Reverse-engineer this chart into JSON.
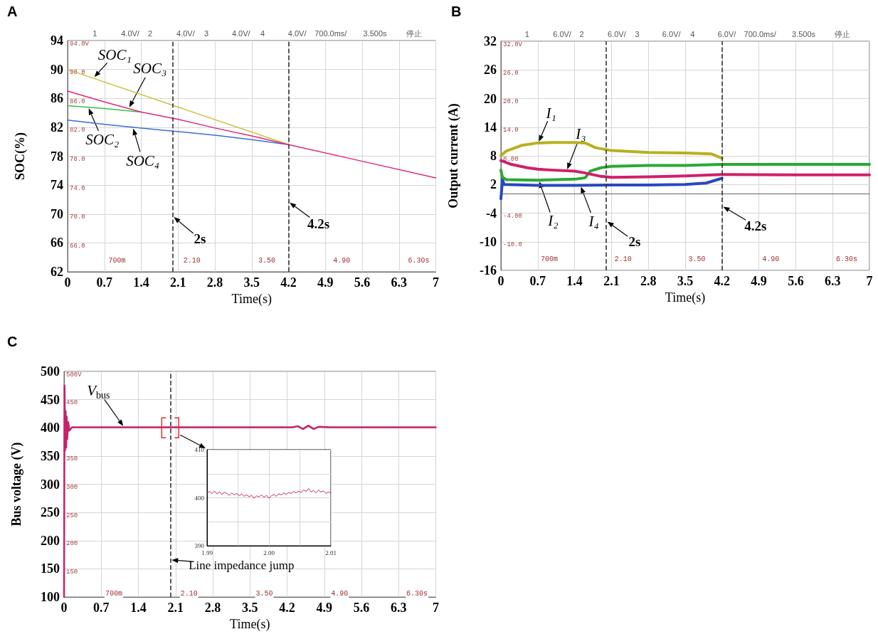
{
  "chart_data": [
    {
      "type": "line",
      "title": "A",
      "xlabel": "Time(s)",
      "ylabel": "SOC(%)",
      "xlim": [
        0,
        7
      ],
      "ylim": [
        62,
        94
      ],
      "xticks": [
        0,
        0.7,
        1.4,
        2.1,
        2.8,
        3.5,
        4.2,
        4.9,
        5.6,
        6.3,
        7
      ],
      "yticks": [
        62,
        66,
        70,
        74,
        78,
        82,
        86,
        90,
        94
      ],
      "grid": true,
      "y2lim": [
        62,
        94
      ],
      "y2ticks": [
        {
          "value": 94,
          "label": "94.0V"
        },
        {
          "value": 90,
          "label": "90.0"
        },
        {
          "value": 86,
          "label": "86.0"
        },
        {
          "value": 82,
          "label": "82.0"
        },
        {
          "value": 78,
          "label": "78.0"
        },
        {
          "value": 74,
          "label": "74.0"
        },
        {
          "value": 70,
          "label": "70.0"
        },
        {
          "value": 66,
          "label": "66.0"
        }
      ],
      "ref_lines": [
        {
          "axis": "x",
          "value": 2,
          "line_style": "dashed",
          "color": "#333333"
        },
        {
          "axis": "x",
          "value": 4.2,
          "line_style": "dashed",
          "color": "#333333"
        }
      ],
      "annotations": [
        "1",
        "4.0V/",
        "2",
        "4.0V/",
        "3",
        "4.0V/",
        "4",
        "4.0V/",
        "700.0ms/",
        "3.500s",
        "停止",
        "700m",
        "2.10",
        "3.50",
        "4.90",
        "6.30s",
        {
          "text": "SOC₁",
          "x": 0.49,
          "y": 88.8
        },
        {
          "text": "SOC₃",
          "x": 1.16,
          "y": 84.6
        },
        {
          "text": "SOC₂",
          "x": 0.39,
          "y": 84.8
        },
        {
          "text": "SOC₄",
          "x": 1.24,
          "y": 82
        },
        {
          "text": "2s",
          "x": 2,
          "y": 69.7
        },
        {
          "text": "4.2s",
          "x": 4.2,
          "y": 71.7
        }
      ],
      "series": [
        {
          "color": "#3a6fd8",
          "x": [
            0,
            0.7,
            1.4,
            2.1,
            2.8,
            3.5,
            4.2
          ],
          "values": [
            83,
            82.4,
            81.9,
            81.4,
            80.9,
            80.3,
            79.6
          ]
        },
        {
          "color": "#33c24a",
          "x": [
            0,
            0.7,
            1.4
          ],
          "values": [
            85,
            84.6,
            84.1
          ]
        },
        {
          "color": "#c8c43c",
          "x": [
            0,
            2.1,
            4.2
          ],
          "values": [
            90,
            84.8,
            79.6
          ]
        },
        {
          "color": "#e0287a",
          "x": [
            0,
            0.7,
            1.4,
            2.1,
            2.8,
            3.5,
            4.2,
            5.6,
            7
          ],
          "values": [
            87,
            85.5,
            84.1,
            83.1,
            81.9,
            80.8,
            79.6,
            77.3,
            75
          ]
        }
      ]
    },
    {
      "type": "line",
      "title": "B",
      "xlabel": "Time(s)",
      "ylabel": "Output current (A)",
      "xlim": [
        0,
        7
      ],
      "ylim": [
        -16,
        32
      ],
      "xticks": [
        0,
        0.7,
        1.4,
        2.1,
        2.8,
        3.5,
        4.2,
        4.9,
        5.6,
        6.3,
        7
      ],
      "yticks": [
        -16,
        -10,
        -4,
        2,
        8,
        14,
        20,
        26,
        32
      ],
      "grid": true,
      "y2lim": [
        -16,
        32
      ],
      "y2ticks": [
        {
          "value": 32,
          "label": "32.0V"
        },
        {
          "value": 26,
          "label": "26.0"
        },
        {
          "value": 20,
          "label": "20.0"
        },
        {
          "value": 14,
          "label": "14.0"
        },
        {
          "value": 8,
          "label": "8.00"
        },
        {
          "value": -4,
          "label": "-4.00"
        },
        {
          "value": -10,
          "label": "-10.0"
        }
      ],
      "ref_lines": [
        {
          "axis": "x",
          "value": 2,
          "line_style": "dashed",
          "color": "#333333"
        },
        {
          "axis": "x",
          "value": 4.2,
          "line_style": "dashed",
          "color": "#333333"
        }
      ],
      "annotations": [
        "1",
        "6.0V/",
        "2",
        "6.0V/",
        "3",
        "6.0V/",
        "4",
        "6.0V/",
        "700.0ms/",
        "3.500s",
        "停止",
        "700m",
        "2.10",
        "3.50",
        "4.90",
        "6.30s",
        {
          "text": "I₁",
          "x": 0.71,
          "y": 10.7
        },
        {
          "text": "I₃",
          "x": 1.25,
          "y": 4.9
        },
        {
          "text": "I₂",
          "x": 0.72,
          "y": 2.9
        },
        {
          "text": "I₄",
          "x": 1.51,
          "y": 1.8
        },
        {
          "text": "2s",
          "x": 2,
          "y": -5.6
        },
        {
          "text": "4.2s",
          "x": 4.2,
          "y": -2.5
        }
      ],
      "series": [
        {
          "color": "#2848c0",
          "x": [
            0,
            0.03,
            0.06,
            0.7,
            1.4,
            2.1,
            2.8,
            3.5,
            3.9,
            4.2
          ],
          "values": [
            -1,
            3,
            2,
            1.8,
            1.8,
            1.9,
            1.9,
            2,
            2.3,
            3.3
          ]
        },
        {
          "color": "#b8b020",
          "x": [
            0,
            0.1,
            0.4,
            0.7,
            1.0,
            1.4,
            1.6,
            1.8,
            2.1,
            2.8,
            3.5,
            4.0,
            4.2
          ],
          "values": [
            8,
            9,
            10.2,
            10.7,
            10.8,
            10.8,
            10.7,
            9.7,
            9.1,
            8.7,
            8.6,
            8.4,
            7.5
          ]
        },
        {
          "color": "#2aa834",
          "x": [
            0,
            0.03,
            0.1,
            0.7,
            1.4,
            1.6,
            1.7,
            1.9,
            2.1,
            2.8,
            3.5,
            4.2,
            5.6,
            7
          ],
          "values": [
            5,
            3.5,
            3,
            2.9,
            3.1,
            3.4,
            4.8,
            5.5,
            5.8,
            6,
            6,
            6.2,
            6.2,
            6.2
          ]
        },
        {
          "color": "#d0206a",
          "x": [
            0,
            0.2,
            0.5,
            0.7,
            1.0,
            1.4,
            1.6,
            1.9,
            2.1,
            2.8,
            3.5,
            4.2,
            5.6,
            7
          ],
          "values": [
            7,
            6.2,
            5.5,
            5.2,
            5,
            4.8,
            4.4,
            3.7,
            3.5,
            3.6,
            3.8,
            4.1,
            4,
            4
          ]
        }
      ]
    },
    {
      "type": "line",
      "title": "C",
      "xlabel": "Time(s)",
      "ylabel": "Bus voltage (V)",
      "xlim": [
        0,
        7
      ],
      "ylim": [
        100,
        500
      ],
      "xticks": [
        0,
        0.7,
        1.4,
        2.1,
        2.8,
        3.5,
        4.2,
        4.9,
        5.6,
        6.3,
        7
      ],
      "yticks": [
        100,
        150,
        200,
        250,
        300,
        350,
        400,
        450,
        500
      ],
      "grid": true,
      "y2lim": [
        100,
        500
      ],
      "y2ticks": [
        {
          "value": 500,
          "label": "500V"
        },
        {
          "value": 450,
          "label": "450"
        },
        {
          "value": 350,
          "label": "350"
        },
        {
          "value": 300,
          "label": "300"
        },
        {
          "value": 250,
          "label": "250"
        },
        {
          "value": 200,
          "label": "200"
        },
        {
          "value": 150,
          "label": "150"
        }
      ],
      "ref_lines": [
        {
          "axis": "x",
          "value": 2,
          "line_style": "dashed",
          "color": "#333333"
        }
      ],
      "annotations": [
        "700m",
        "2.10",
        "3.50",
        "4.90",
        "6.30s",
        {
          "text": "V$_{bus}$",
          "x": 1.13,
          "y": 401
        },
        {
          "text": "Line impedance jump",
          "x": 2,
          "y": 166
        }
      ],
      "series": [
        {
          "color": "#c8206a",
          "x": [
            0,
            0.01,
            0.02,
            0.03,
            0.04,
            0.05,
            0.06,
            0.08,
            0.1,
            0.15,
            1,
            2,
            3,
            4.3,
            4.4,
            4.5,
            4.6,
            4.7,
            4.8,
            5,
            6,
            7
          ],
          "values": [
            100,
            475,
            360,
            430,
            365,
            420,
            380,
            410,
            395,
            401,
            401,
            401,
            401,
            401,
            403,
            398,
            404,
            398,
            402,
            401,
            401,
            401
          ]
        }
      ]
    },
    {
      "type": "line",
      "xlim": [
        1.99,
        2.01
      ],
      "ylim": [
        390,
        410
      ],
      "xticks": [
        1.99,
        {
          "value": 1.995,
          "label": null
        },
        {
          "value": 2,
          "label": "2.00"
        },
        {
          "value": 2.005,
          "label": null
        },
        2.01
      ],
      "yticks": [
        390,
        {
          "value": 395,
          "label": null
        },
        400,
        {
          "value": 405,
          "label": null
        },
        410
      ],
      "grid": true,
      "series": [
        {
          "color": "#c8206a",
          "x": [
            1.99,
            1.9904,
            1.9908,
            1.9912,
            1.9916,
            1.992,
            1.9924,
            1.9928,
            1.9932,
            1.9936,
            1.994,
            1.9944,
            1.9948,
            1.9952,
            1.9956,
            1.996,
            1.9964,
            1.9968,
            1.9972,
            1.9976,
            1.998,
            1.9984,
            1.9988,
            1.9992,
            1.9996,
            2,
            2.0004,
            2.0008,
            2.0012,
            2.0016,
            2.002,
            2.0024,
            2.0028,
            2.0032,
            2.0036,
            2.004,
            2.0044,
            2.0048,
            2.0052,
            2.0056,
            2.006,
            2.0064,
            2.0068,
            2.0072,
            2.0076,
            2.008,
            2.0084,
            2.0088,
            2.0092,
            2.0096,
            2.01
          ],
          "values": [
            401,
            401.3,
            400.9,
            401.4,
            400.8,
            401.2,
            400.7,
            401.1,
            400.9,
            400.5,
            401,
            400.6,
            400.9,
            400.4,
            400.8,
            400.3,
            400.6,
            400.2,
            400.5,
            399.9,
            400.4,
            400.2,
            400.6,
            400.1,
            400.5,
            399.9,
            400.4,
            400.7,
            400.3,
            400.8,
            400.6,
            401,
            400.7,
            401.1,
            400.9,
            401.3,
            401,
            401.4,
            401.1,
            401.6,
            401.3,
            401.9,
            401.2,
            401.5,
            401,
            401.6,
            401.2,
            401.4,
            400.9,
            401.2,
            401
          ]
        }
      ]
    }
  ]
}
